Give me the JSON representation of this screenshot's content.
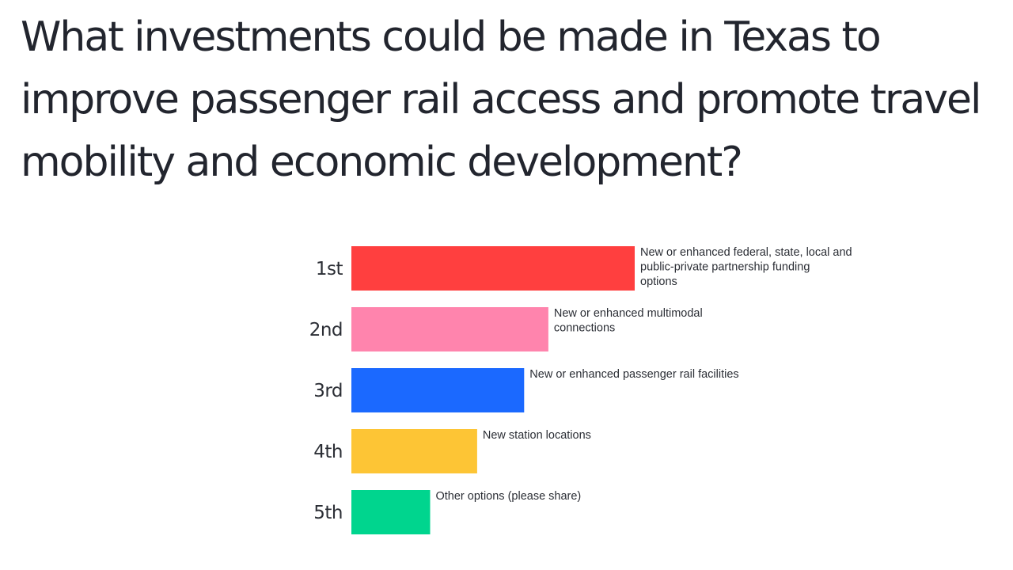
{
  "question": {
    "title": "What investments could be made in Texas to improve passenger rail access and promote travel mobility and economic development?"
  },
  "chart_data": {
    "type": "bar",
    "orientation": "horizontal",
    "categories": [
      "1st",
      "2nd",
      "3rd",
      "4th",
      "5th"
    ],
    "options": [
      {
        "rank": "1st",
        "lines": [
          "New or enhanced federal, state, local and",
          "public-private partnership funding",
          "options"
        ],
        "score": 4.1,
        "color": "#ff3f3f"
      },
      {
        "rank": "2nd",
        "lines": [
          "New or enhanced multimodal",
          "connections"
        ],
        "score": 2.85,
        "color": "#ff84ad"
      },
      {
        "rank": "3rd",
        "lines": [
          "New or enhanced passenger rail facilities"
        ],
        "score": 2.5,
        "color": "#1b69ff"
      },
      {
        "rank": "4th",
        "lines": [
          "New station locations"
        ],
        "score": 1.82,
        "color": "#fdc535"
      },
      {
        "rank": "5th",
        "lines": [
          "Other options (please share)"
        ],
        "score": 1.14,
        "color": "#00d58e"
      }
    ],
    "xlim": [
      0,
      4.1
    ],
    "axes_shown": false,
    "grid": false,
    "legend": "none"
  }
}
